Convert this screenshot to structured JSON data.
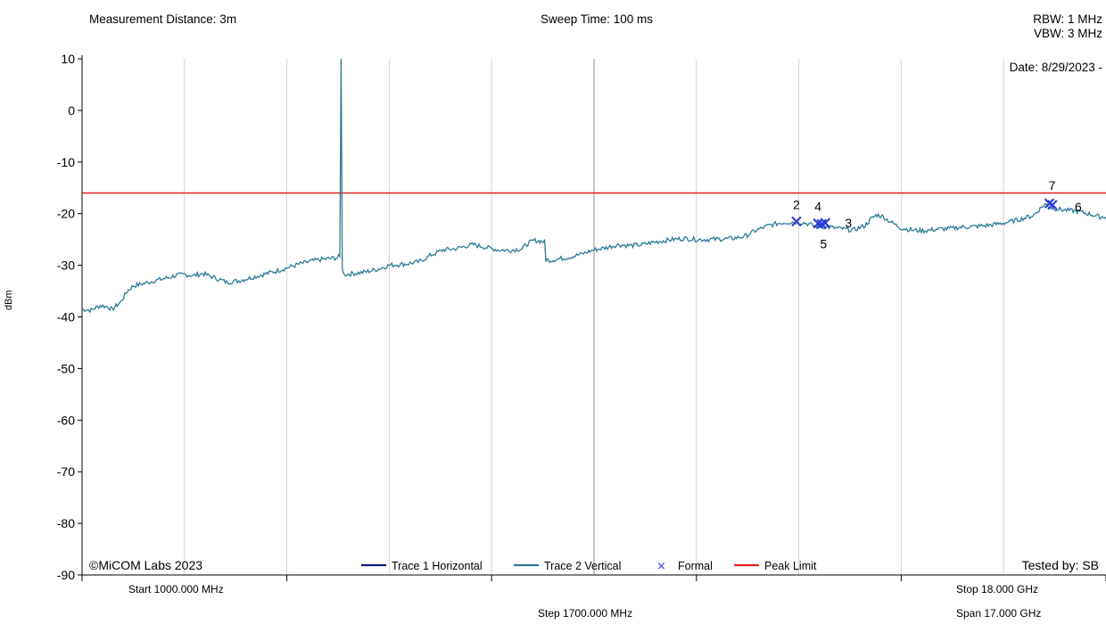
{
  "header": {
    "measurement_distance": "Measurement Distance: 3m",
    "sweep_time": "Sweep Time: 100 ms",
    "rbw": "RBW: 1 MHz",
    "vbw": "VBW: 3 MHz",
    "date": "Date: 8/29/2023 -"
  },
  "footer": {
    "start": "Start 1000.000 MHz",
    "step": "Step 1700.000 MHz",
    "stop": "Stop 18.000 GHz",
    "span": "Span 17.000 GHz",
    "copyright": "©MiCOM Labs 2023",
    "tested_by": "Tested by: SB"
  },
  "legend": {
    "trace1": "Trace 1 Horizontal",
    "trace2": "Trace 2 Vertical",
    "formal": "Formal",
    "limit": "Peak Limit"
  },
  "colors": {
    "trace1": "#0d1a80",
    "trace2": "#2e7a94",
    "formal": "#2e3fd6",
    "limit": "#e41e1e",
    "grid": "#d4d4d4"
  },
  "chart_data": {
    "type": "line",
    "xlim": [
      1000,
      18000
    ],
    "ylim": [
      -90,
      10
    ],
    "ylabel": "dBm",
    "yticks": [
      10,
      0,
      -10,
      -20,
      -30,
      -40,
      -50,
      -60,
      -70,
      -80,
      -90
    ],
    "peak_limit": -16,
    "trace2": [
      [
        1000,
        -38.5
      ],
      [
        1150,
        -38.7
      ],
      [
        1300,
        -37.8
      ],
      [
        1420,
        -38.0
      ],
      [
        1500,
        -38.6
      ],
      [
        1650,
        -37.0
      ],
      [
        1750,
        -35.0
      ],
      [
        1850,
        -34.0
      ],
      [
        2000,
        -33.6
      ],
      [
        2200,
        -33.0
      ],
      [
        2400,
        -32.5
      ],
      [
        2550,
        -32.0
      ],
      [
        2700,
        -31.8
      ],
      [
        2850,
        -32.0
      ],
      [
        3000,
        -31.6
      ],
      [
        3200,
        -32.4
      ],
      [
        3400,
        -33.3
      ],
      [
        3600,
        -33.0
      ],
      [
        3800,
        -32.4
      ],
      [
        4000,
        -31.8
      ],
      [
        4200,
        -31.2
      ],
      [
        4400,
        -30.5
      ],
      [
        4600,
        -29.8
      ],
      [
        4800,
        -29.2
      ],
      [
        5000,
        -28.8
      ],
      [
        5200,
        -28.6
      ],
      [
        5280,
        -28.3
      ],
      [
        5300,
        10.0
      ],
      [
        5320,
        -30.5
      ],
      [
        5350,
        -31.8
      ],
      [
        5500,
        -31.6
      ],
      [
        5700,
        -31.3
      ],
      [
        5900,
        -30.8
      ],
      [
        6100,
        -30.0
      ],
      [
        6400,
        -29.7
      ],
      [
        6600,
        -29.3
      ],
      [
        6800,
        -28.0
      ],
      [
        7000,
        -27.0
      ],
      [
        7200,
        -26.8
      ],
      [
        7400,
        -26.2
      ],
      [
        7500,
        -26.0
      ],
      [
        7700,
        -26.5
      ],
      [
        7900,
        -27.0
      ],
      [
        8100,
        -27.1
      ],
      [
        8300,
        -26.8
      ],
      [
        8400,
        -25.8
      ],
      [
        8500,
        -25.2
      ],
      [
        8600,
        -25.3
      ],
      [
        8680,
        -25.4
      ],
      [
        8700,
        -29.0
      ],
      [
        8800,
        -29.0
      ],
      [
        8950,
        -28.7
      ],
      [
        9100,
        -28.4
      ],
      [
        9300,
        -27.8
      ],
      [
        9500,
        -27.0
      ],
      [
        9700,
        -26.6
      ],
      [
        9900,
        -26.0
      ],
      [
        10100,
        -26.2
      ],
      [
        10300,
        -26.0
      ],
      [
        10500,
        -25.5
      ],
      [
        10800,
        -25.0
      ],
      [
        11000,
        -24.8
      ],
      [
        11200,
        -25.0
      ],
      [
        11400,
        -25.0
      ],
      [
        11600,
        -24.9
      ],
      [
        11800,
        -24.8
      ],
      [
        12000,
        -24.4
      ],
      [
        12200,
        -23.2
      ],
      [
        12400,
        -22.3
      ],
      [
        12600,
        -21.8
      ],
      [
        12800,
        -21.6
      ],
      [
        13000,
        -21.8
      ],
      [
        13200,
        -22.5
      ],
      [
        13400,
        -22.6
      ],
      [
        13600,
        -22.9
      ],
      [
        13800,
        -23.2
      ],
      [
        14000,
        -22.3
      ],
      [
        14100,
        -21.0
      ],
      [
        14200,
        -20.2
      ],
      [
        14300,
        -20.6
      ],
      [
        14450,
        -21.8
      ],
      [
        14600,
        -22.8
      ],
      [
        14800,
        -23.2
      ],
      [
        15000,
        -23.3
      ],
      [
        15200,
        -23.0
      ],
      [
        15400,
        -22.9
      ],
      [
        15600,
        -22.6
      ],
      [
        15800,
        -22.5
      ],
      [
        16000,
        -22.3
      ],
      [
        16200,
        -22.0
      ],
      [
        16400,
        -21.6
      ],
      [
        16600,
        -21.0
      ],
      [
        16800,
        -20.3
      ],
      [
        16950,
        -18.5
      ],
      [
        17000,
        -18.2
      ],
      [
        17100,
        -18.9
      ],
      [
        17300,
        -19.3
      ],
      [
        17500,
        -19.5
      ],
      [
        17700,
        -20.0
      ],
      [
        17900,
        -20.6
      ],
      [
        18000,
        -20.6
      ]
    ],
    "markers": [
      {
        "label": "2",
        "x": 12860,
        "y": -21.5
      },
      {
        "label": "4",
        "x": 13220,
        "y": -21.9
      },
      {
        "label": "5",
        "x": 13280,
        "y": -22.0
      },
      {
        "label": "3",
        "x": 13340,
        "y": -21.8
      },
      {
        "label": "7",
        "x": 17060,
        "y": -18.0
      },
      {
        "label": "6",
        "x": 17110,
        "y": -18.3
      }
    ]
  }
}
